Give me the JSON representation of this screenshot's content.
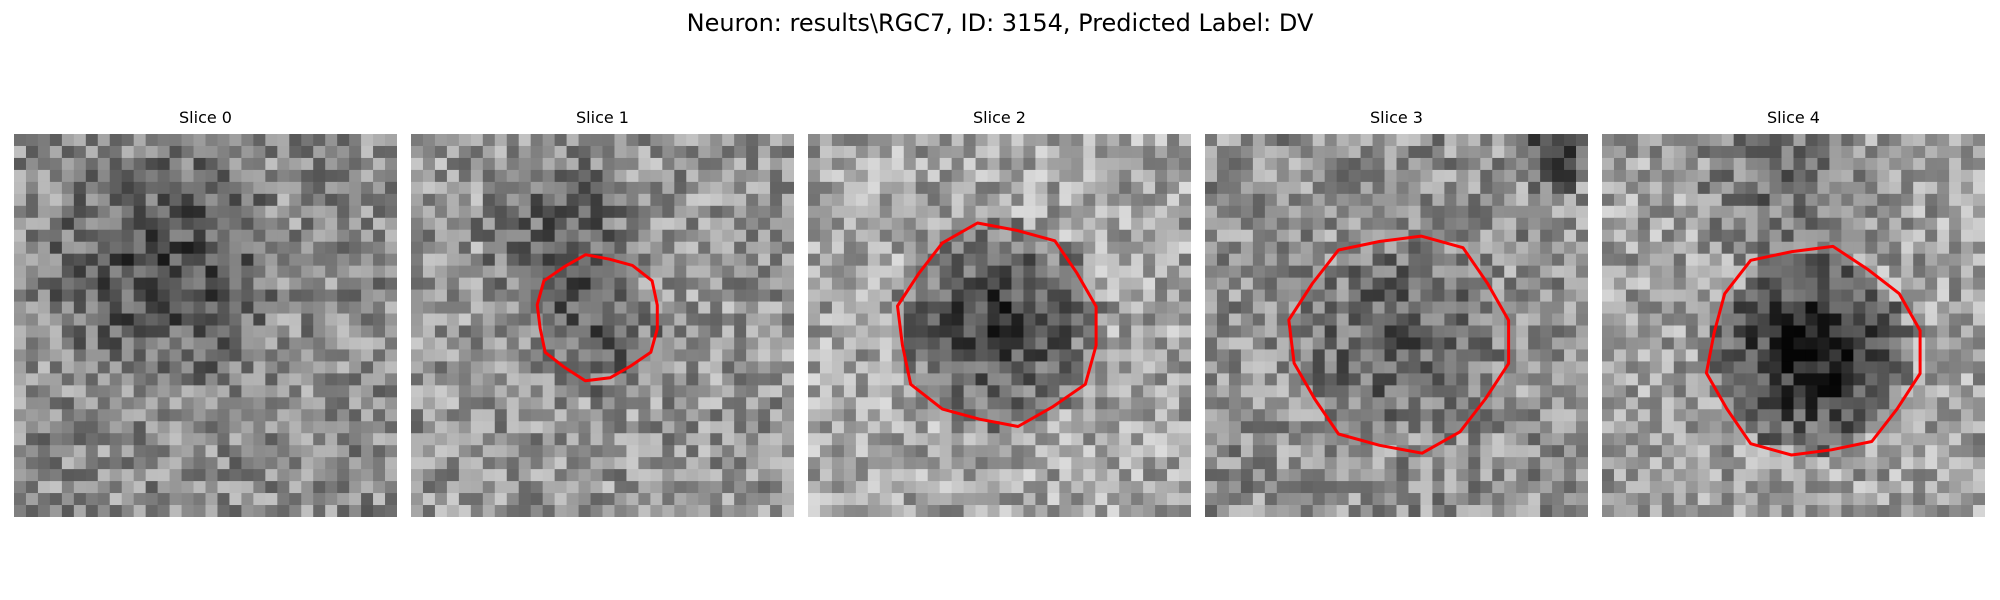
{
  "figure": {
    "title": "Neuron: results\\RGC7, ID: 3154, Predicted Label: DV",
    "contour_color": "#ff0000"
  },
  "panels": [
    {
      "title": "Slice 0",
      "seed": 11,
      "mean": 140,
      "contour": false
    },
    {
      "title": "Slice 1",
      "seed": 23,
      "mean": 150,
      "contour": true
    },
    {
      "title": "Slice 2",
      "seed": 37,
      "mean": 165,
      "contour": true
    },
    {
      "title": "Slice 3",
      "seed": 41,
      "mean": 145,
      "contour": true
    },
    {
      "title": "Slice 4",
      "seed": 53,
      "mean": 160,
      "contour": true
    }
  ]
}
